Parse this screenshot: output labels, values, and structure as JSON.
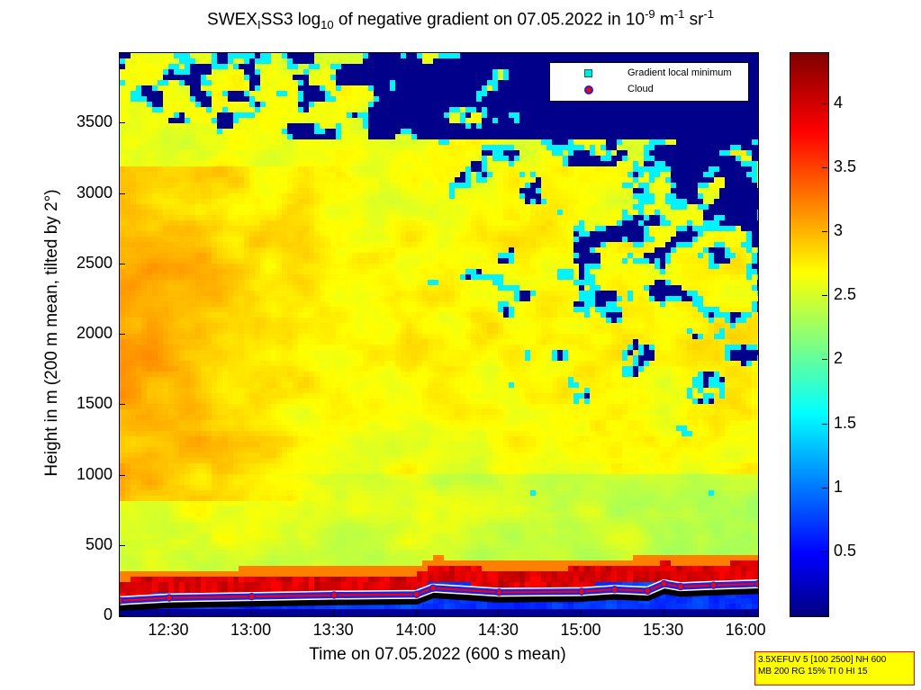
{
  "title": {
    "part1": "SWEX",
    "sub1": "I",
    "part2": "SS3 log",
    "sub2": "10",
    "part3": " of negative gradient on 07.05.2022 in 10",
    "sup1": "-9",
    "part4": " m",
    "sup2": "-1",
    "part5": " sr",
    "sup3": "-1"
  },
  "legend": {
    "items": [
      {
        "label": "Gradient local minimum",
        "color": "#00e6e6",
        "marker": "square"
      },
      {
        "label": "Cloud",
        "color": "#ff0000",
        "marker": "circle"
      }
    ]
  },
  "info": {
    "line1": "3.5XEFUV 5 [100 2500] NH 600",
    "line2": "MB 200 RG 15% TI 0 HI 15"
  },
  "colors": {
    "background_low": "#000088",
    "ground_band": "#8b0000",
    "cloud_marker": "#ff0000",
    "gradient_marker": "#00e6e6"
  },
  "chart_data": {
    "type": "heatmap",
    "title": "SWEXISS3 log10 of negative gradient on 07.05.2022 in 10-9 m-1 sr-1",
    "xlabel": "Time on 07.05.2022 (600 s mean)",
    "ylabel": "Height in m (200 m mean, tilted by 2°)",
    "x_tick_labels": [
      "12:30",
      "13:00",
      "13:30",
      "14:00",
      "14:30",
      "15:00",
      "15:30",
      "16:00"
    ],
    "x_ticks_hours": [
      12.5,
      13.0,
      13.5,
      14.0,
      14.5,
      15.0,
      15.5,
      16.0
    ],
    "xlim_hours": [
      12.2,
      16.07
    ],
    "y_tick_labels": [
      "0",
      "500",
      "1000",
      "1500",
      "2000",
      "2500",
      "3000",
      "3500"
    ],
    "y_ticks": [
      0,
      500,
      1000,
      1500,
      2000,
      2500,
      3000,
      3500
    ],
    "ylim": [
      0,
      4000
    ],
    "colorbar": {
      "tick_labels": [
        "0.5",
        "1",
        "1.5",
        "2",
        "2.5",
        "3",
        "3.5",
        "4"
      ],
      "ticks": [
        0.5,
        1,
        1.5,
        2,
        2.5,
        3,
        3.5,
        4
      ],
      "range": [
        0,
        4.4
      ],
      "colormap": "jet"
    },
    "cloud_base_series": {
      "name": "Cloud",
      "x_hours": [
        12.2,
        12.5,
        13.0,
        13.5,
        14.0,
        14.1,
        14.5,
        15.0,
        15.2,
        15.4,
        15.5,
        15.6,
        15.8,
        16.07
      ],
      "height_m": [
        110,
        130,
        140,
        150,
        155,
        200,
        170,
        175,
        190,
        180,
        230,
        210,
        220,
        230
      ]
    },
    "ground_band_top_m": [
      260,
      270,
      280,
      290,
      300,
      360,
      330,
      340,
      350,
      360,
      380,
      370,
      375,
      380
    ]
  }
}
